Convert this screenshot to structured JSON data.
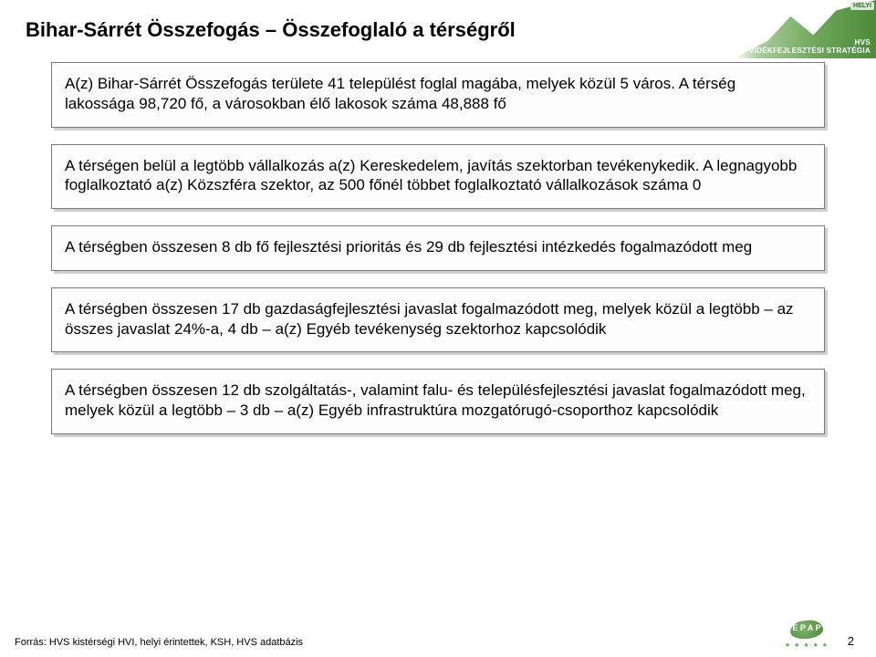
{
  "title": "Bihar-Sárrét Összefogás – Összefoglaló a térségről",
  "boxes": [
    "A(z) Bihar-Sárrét Összefogás területe 41 települést foglal magába, melyek közül 5 város. A térség lakossága 98,720 fő, a városokban élő lakosok száma 48,888 fő",
    "A térségen belül a legtöbb vállalkozás a(z) Kereskedelem, javítás szektorban tevékenykedik. A legnagyobb foglalkoztató a(z) Közszféra szektor, az 500 főnél többet foglalkoztató vállalkozások száma 0",
    "A térségben összesen 8 db fő fejlesztési prioritás és 29 db fejlesztési intézkedés fogalmazódott meg",
    "A térségben összesen 17 db gazdaságfejlesztési javaslat fogalmazódott meg, melyek közül a legtöbb – az összes javaslat 24%-a, 4 db – a(z) Egyéb tevékenység szektorhoz kapcsolódik",
    "A térségben összesen 12 db szolgáltatás-, valamint falu- és településfejlesztési javaslat fogalmazódott meg, melyek közül a legtöbb – 3 db – a(z) Egyéb infrastruktúra mozgatórugó-csoporthoz kapcsolódik"
  ],
  "source": "Forrás:   HVS kistérségi HVI, helyi érintettek, KSH, HVS adatbázis",
  "page_number": "2",
  "logo": {
    "badge": "HELYI",
    "line1": "HVS",
    "line2": "VIDÉKFEJLESZTÉSI STRATÉGIA"
  },
  "epap": {
    "text": "E P A P"
  },
  "colors": {
    "box_border": "#7a7a7a",
    "box_shadow": "#cfcfcf",
    "background": "#ffffff",
    "logo_green_light": "#a9cc9b",
    "logo_green_dark": "#4b8b3a"
  }
}
